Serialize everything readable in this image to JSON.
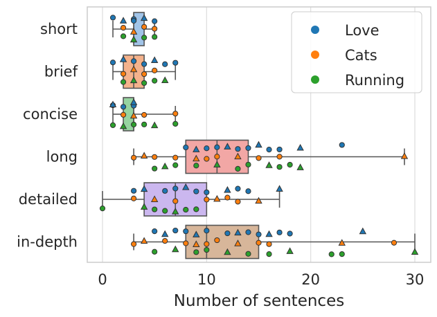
{
  "chart_data": {
    "type": "box",
    "orientation": "horizontal",
    "xlabel": "Number of sentences",
    "ylabel": "",
    "xlim": [
      -1.5,
      31.5
    ],
    "xticks": [
      0,
      10,
      20,
      30
    ],
    "grid": true,
    "legend": {
      "placement": "top-right",
      "entries": [
        {
          "name": "Love",
          "color": "#1f77b4"
        },
        {
          "name": "Cats",
          "color": "#ff7f0e"
        },
        {
          "name": "Running",
          "color": "#2ca02c"
        }
      ]
    },
    "categories": [
      "short",
      "brief",
      "concise",
      "long",
      "detailed",
      "in-depth"
    ],
    "boxes": [
      {
        "category": "short",
        "whislo": 1,
        "q1": 3,
        "med": 3,
        "q3": 4,
        "whishi": 5,
        "color": "#a1c4e8"
      },
      {
        "category": "brief",
        "whislo": 1,
        "q1": 2,
        "med": 3,
        "q3": 4,
        "whishi": 7,
        "color": "#f4b28c"
      },
      {
        "category": "concise",
        "whislo": 1,
        "q1": 2,
        "med": 3,
        "q3": 3,
        "whishi": 7,
        "color": "#96d4a0"
      },
      {
        "category": "long",
        "whislo": 3,
        "q1": 8,
        "med": 11,
        "q3": 14,
        "whishi": 29,
        "color": "#f2a7a5"
      },
      {
        "category": "detailed",
        "whislo": 0,
        "q1": 4,
        "med": 7,
        "q3": 10,
        "whishi": 17,
        "color": "#cbb7ef"
      },
      {
        "category": "in-depth",
        "whislo": 3,
        "q1": 8,
        "med": 10,
        "q3": 15,
        "whishi": 30,
        "color": "#d7b69a"
      }
    ],
    "series": [
      {
        "name": "Love",
        "color": "#1f77b4",
        "points": {
          "short": [
            1,
            2,
            3,
            3,
            4,
            5,
            3
          ],
          "brief": [
            1,
            2,
            3,
            4,
            5,
            6,
            7
          ],
          "concise": [
            1,
            1,
            2,
            3,
            3
          ],
          "long": [
            8,
            9,
            10,
            11,
            12,
            13,
            14,
            15,
            16,
            17,
            19,
            23
          ],
          "detailed": [
            3,
            4,
            6,
            7,
            8,
            9,
            10,
            12,
            13,
            14,
            17
          ],
          "in-depth": [
            5,
            6,
            7,
            8,
            9,
            10,
            12,
            13,
            14,
            15,
            16,
            17,
            18,
            25
          ]
        }
      },
      {
        "name": "Cats",
        "color": "#ff7f0e",
        "points": {
          "short": [
            2,
            3,
            4,
            5
          ],
          "brief": [
            2,
            3,
            4,
            5
          ],
          "concise": [
            2,
            3,
            4,
            7
          ],
          "long": [
            3,
            4,
            5,
            7,
            9,
            10,
            11,
            13,
            15,
            17,
            29
          ],
          "detailed": [
            3,
            5,
            7,
            10,
            11,
            12,
            13,
            15
          ],
          "in-depth": [
            3,
            4,
            6,
            8,
            9,
            10,
            11,
            13,
            15,
            16,
            23,
            28
          ]
        }
      },
      {
        "name": "Running",
        "color": "#2ca02c",
        "points": {
          "short": [
            2,
            3,
            4,
            5
          ],
          "brief": [
            2,
            3,
            4,
            5,
            6
          ],
          "concise": [
            1,
            2,
            3,
            4,
            5,
            7
          ],
          "long": [
            5,
            6,
            7,
            9,
            11,
            13,
            14,
            16,
            17,
            18,
            19
          ],
          "detailed": [
            0,
            4,
            5,
            6,
            7,
            8,
            9
          ],
          "in-depth": [
            5,
            7,
            9,
            10,
            12,
            14,
            16,
            18,
            22,
            23,
            30
          ]
        }
      }
    ]
  }
}
